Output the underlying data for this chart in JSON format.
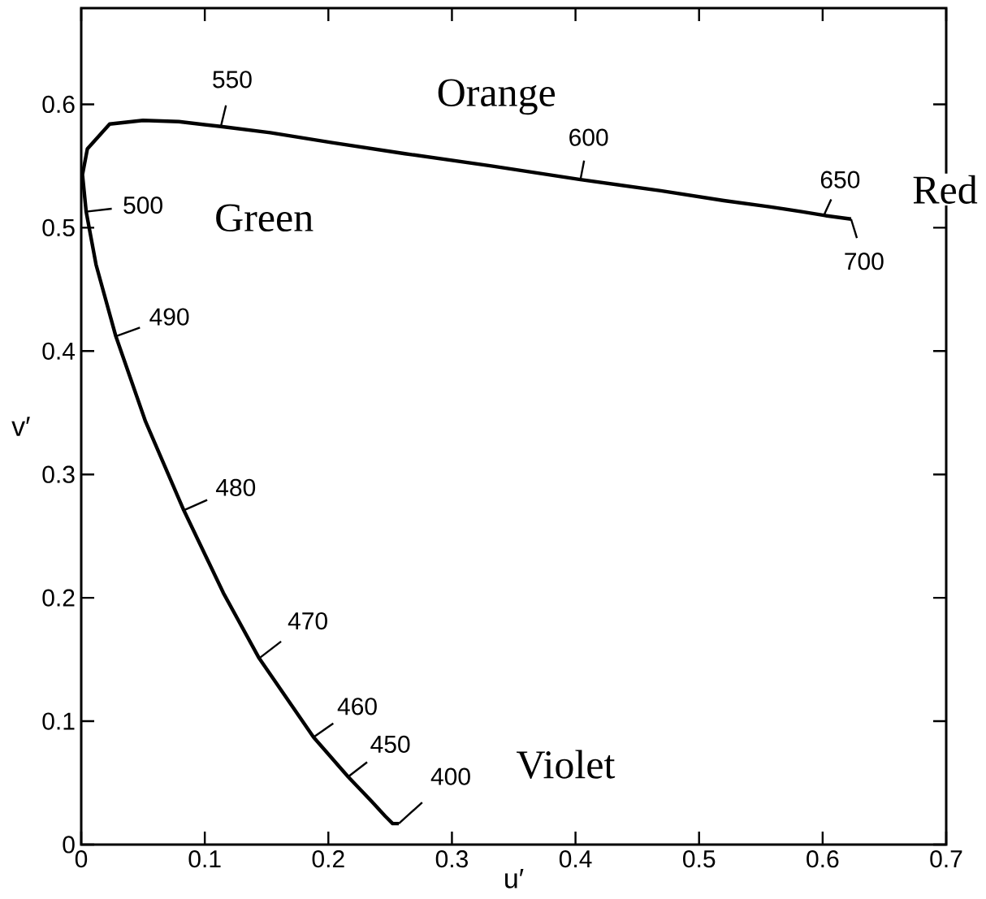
{
  "chart_data": {
    "type": "line",
    "xlabel": "u′",
    "ylabel": "v′",
    "xlim": [
      0,
      0.7
    ],
    "ylim": [
      0,
      0.678
    ],
    "xticks": [
      0,
      0.1,
      0.2,
      0.3,
      0.4,
      0.5,
      0.6,
      0.7
    ],
    "yticks": [
      0,
      0.1,
      0.2,
      0.3,
      0.4,
      0.5,
      0.6
    ],
    "grid": false,
    "marker": "none",
    "line_style": "solid",
    "series": [
      {
        "color": "#000000",
        "x": [
          0.257,
          0.252,
          0.246,
          0.235,
          0.216,
          0.188,
          0.144,
          0.115,
          0.083,
          0.052,
          0.028,
          0.012,
          0.004,
          0.001,
          0.005,
          0.023,
          0.05,
          0.079,
          0.113,
          0.153,
          0.203,
          0.262,
          0.332,
          0.404,
          0.469,
          0.52,
          0.557,
          0.583,
          0.601,
          0.623
        ],
        "values": [
          0.017,
          0.017,
          0.023,
          0.035,
          0.055,
          0.087,
          0.151,
          0.204,
          0.271,
          0.343,
          0.412,
          0.47,
          0.513,
          0.543,
          0.564,
          0.584,
          0.587,
          0.586,
          0.582,
          0.577,
          0.569,
          0.56,
          0.55,
          0.539,
          0.53,
          0.522,
          0.517,
          0.513,
          0.51,
          0.507
        ]
      }
    ],
    "annotations": [
      {
        "text": "400",
        "x": 0.257,
        "y": 0.017
      },
      {
        "text": "450",
        "x": 0.216,
        "y": 0.055
      },
      {
        "text": "460",
        "x": 0.188,
        "y": 0.087
      },
      {
        "text": "470",
        "x": 0.144,
        "y": 0.151
      },
      {
        "text": "480",
        "x": 0.083,
        "y": 0.271
      },
      {
        "text": "490",
        "x": 0.028,
        "y": 0.412
      },
      {
        "text": "500",
        "x": 0.004,
        "y": 0.513
      },
      {
        "text": "550",
        "x": 0.113,
        "y": 0.582
      },
      {
        "text": "600",
        "x": 0.404,
        "y": 0.539
      },
      {
        "text": "650",
        "x": 0.601,
        "y": 0.51
      },
      {
        "text": "700",
        "x": 0.623,
        "y": 0.507
      },
      "Orange",
      "Green",
      "Red",
      "Violet"
    ]
  }
}
